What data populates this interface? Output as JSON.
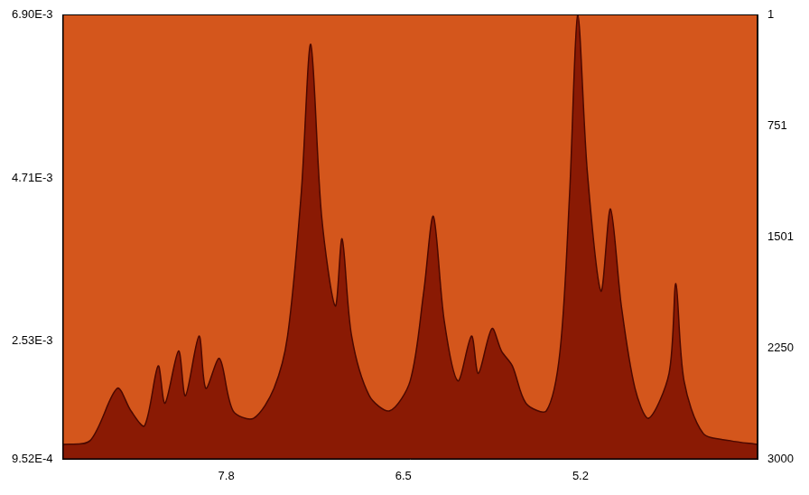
{
  "chart_data": {
    "type": "line",
    "x": [
      9.0,
      8.8,
      8.6,
      8.5,
      8.4,
      8.3,
      8.25,
      8.15,
      8.1,
      8.0,
      7.95,
      7.85,
      7.75,
      7.6,
      7.45,
      7.35,
      7.25,
      7.18,
      7.1,
      7.0,
      6.95,
      6.88,
      6.75,
      6.6,
      6.45,
      6.35,
      6.28,
      6.2,
      6.1,
      6.0,
      5.95,
      5.85,
      5.78,
      5.7,
      5.6,
      5.45,
      5.35,
      5.28,
      5.22,
      5.15,
      5.05,
      4.98,
      4.9,
      4.8,
      4.7,
      4.55,
      4.5,
      4.44,
      4.3,
      4.1,
      3.9
    ],
    "values": [
      0.00115,
      0.0012,
      0.0019,
      0.0016,
      0.0014,
      0.0022,
      0.0017,
      0.0024,
      0.0018,
      0.0026,
      0.0019,
      0.0023,
      0.0016,
      0.0015,
      0.0019,
      0.0026,
      0.0045,
      0.0065,
      0.0042,
      0.003,
      0.0039,
      0.0026,
      0.0018,
      0.0016,
      0.002,
      0.0032,
      0.0042,
      0.0028,
      0.002,
      0.0026,
      0.0021,
      0.0027,
      0.0024,
      0.0022,
      0.0017,
      0.0016,
      0.0024,
      0.0045,
      0.0069,
      0.0048,
      0.0032,
      0.0043,
      0.003,
      0.0019,
      0.0015,
      0.0021,
      0.0033,
      0.002,
      0.0013,
      0.0012,
      0.00115
    ],
    "color": "#8a1a04",
    "xlim": [
      9.0,
      3.9
    ],
    "xticks": [
      7.8,
      6.5,
      5.2
    ],
    "ylim": [
      0.000952,
      0.0069
    ],
    "yticks": [
      {
        "value": 0.000952,
        "label": "9.52E-4"
      },
      {
        "value": 0.00253,
        "label": "2.53E-3"
      },
      {
        "value": 0.00471,
        "label": "4.71E-3"
      },
      {
        "value": 0.0069,
        "label": "6.90E-3"
      }
    ],
    "y2lim": [
      1,
      3000
    ],
    "y2ticks": [
      1,
      751,
      1501,
      2250,
      3000
    ],
    "grid": false
  }
}
